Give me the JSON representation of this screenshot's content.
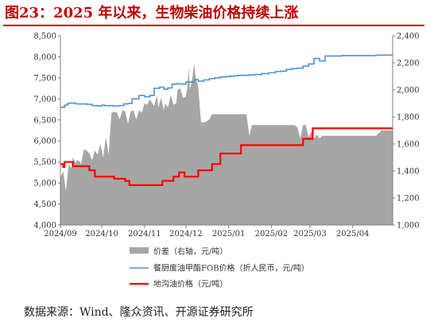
{
  "header": {
    "title": "图23：2025 年以来，生物柴油价格持续上涨"
  },
  "footer": {
    "source": "数据来源：Wind、隆众资讯、开源证券研究所"
  },
  "colors": {
    "spread": "#a6a6a6",
    "fob": "#4f94d4",
    "ditch": "#ff0000",
    "title": "#c00000"
  },
  "chart_data": {
    "type": "line",
    "title": "",
    "x_type": "date",
    "x_range": [
      "2024-09-01",
      "2025-04-30"
    ],
    "x_ticks": [
      "2024/09",
      "2024/10",
      "2024/11",
      "2024/12",
      "2025/01",
      "2025/02",
      "2025/03",
      "2025/04"
    ],
    "y_left": {
      "min": 4000,
      "max": 8500,
      "step": 500,
      "ticks": [
        "4,000",
        "4,500",
        "5,000",
        "5,500",
        "6,000",
        "6,500",
        "7,000",
        "7,500",
        "8,000",
        "8,500"
      ]
    },
    "y_right": {
      "min": 1000,
      "max": 2400,
      "step": 200,
      "ticks": [
        "1,000",
        "1,200",
        "1,400",
        "1,600",
        "1,800",
        "2,000",
        "2,200",
        "2,400"
      ]
    },
    "series": [
      {
        "name": "价差（右轴，元/吨）",
        "type": "area",
        "axis": "right",
        "x": [
          "2024-09-01",
          "2024-09-03",
          "2024-09-05",
          "2024-09-07",
          "2024-09-09",
          "2024-09-10",
          "2024-09-12",
          "2024-09-13",
          "2024-09-15",
          "2024-09-16",
          "2024-09-18",
          "2024-09-20",
          "2024-09-22",
          "2024-09-24",
          "2024-09-26",
          "2024-09-28",
          "2024-09-30",
          "2024-10-02",
          "2024-10-04",
          "2024-10-06",
          "2024-10-08",
          "2024-10-10",
          "2024-10-12",
          "2024-10-14",
          "2024-10-16",
          "2024-10-18",
          "2024-10-20",
          "2024-10-22",
          "2024-10-24",
          "2024-10-26",
          "2024-10-28",
          "2024-10-30",
          "2024-11-01",
          "2024-11-03",
          "2024-11-05",
          "2024-11-06",
          "2024-11-08",
          "2024-11-10",
          "2024-11-11",
          "2024-11-13",
          "2024-11-15",
          "2024-11-16",
          "2024-11-18",
          "2024-11-20",
          "2024-11-22",
          "2024-11-24",
          "2024-11-25",
          "2024-11-27",
          "2024-11-29",
          "2024-12-01",
          "2024-12-02",
          "2024-12-03",
          "2024-12-04",
          "2024-12-05",
          "2024-12-06",
          "2024-12-07",
          "2024-12-08",
          "2024-12-10",
          "2024-12-12",
          "2024-12-15",
          "2024-12-18",
          "2024-12-20",
          "2024-12-22",
          "2024-12-25",
          "2024-12-28",
          "2024-12-31",
          "2025-01-03",
          "2025-01-06",
          "2025-01-08",
          "2025-01-10",
          "2025-01-12",
          "2025-01-14",
          "2025-01-16",
          "2025-01-18",
          "2025-01-20",
          "2025-01-23",
          "2025-01-26",
          "2025-01-29",
          "2025-02-01",
          "2025-02-04",
          "2025-02-07",
          "2025-02-10",
          "2025-02-14",
          "2025-02-18",
          "2025-02-20",
          "2025-02-22",
          "2025-02-24",
          "2025-02-26",
          "2025-02-28",
          "2025-03-02",
          "2025-03-04",
          "2025-03-06",
          "2025-03-08",
          "2025-03-10",
          "2025-03-12",
          "2025-03-15",
          "2025-03-18",
          "2025-03-21",
          "2025-03-24",
          "2025-03-27",
          "2025-03-30",
          "2025-04-02",
          "2025-04-06",
          "2025-04-10",
          "2025-04-14",
          "2025-04-18",
          "2025-04-22",
          "2025-04-26",
          "2025-04-30"
        ],
        "values": [
          1350,
          1400,
          1250,
          1450,
          1420,
          1500,
          1460,
          1480,
          1470,
          1450,
          1560,
          1550,
          1530,
          1480,
          1550,
          1520,
          1600,
          1500,
          1650,
          1520,
          1830,
          1840,
          1830,
          1780,
          1850,
          1840,
          1750,
          1840,
          1850,
          1780,
          1850,
          1830,
          1900,
          1890,
          1930,
          1910,
          1880,
          1960,
          1870,
          1940,
          1850,
          1900,
          1870,
          1960,
          1890,
          1900,
          2000,
          2010,
          1940,
          1950,
          2010,
          2160,
          2000,
          2050,
          2110,
          2200,
          2100,
          2020,
          1760,
          1760,
          1780,
          1820,
          1820,
          1820,
          1820,
          1820,
          1820,
          1820,
          1820,
          1820,
          1820,
          1820,
          1660,
          1740,
          1740,
          1740,
          1740,
          1740,
          1740,
          1740,
          1740,
          1740,
          1740,
          1740,
          1720,
          1640,
          1740,
          1740,
          1650,
          1690,
          1640,
          1670,
          1640,
          1660,
          1660,
          1660,
          1660,
          1660,
          1660,
          1660,
          1660,
          1660,
          1660,
          1660,
          1660,
          1660,
          1700,
          1700,
          1700
        ]
      },
      {
        "name": "餐厨废油甲酯FOB价格（折人民币，元/吨）",
        "type": "line",
        "axis": "left",
        "x": [
          "2024-09-01",
          "2024-09-03",
          "2024-09-04",
          "2024-09-06",
          "2024-09-07",
          "2024-09-09",
          "2024-09-12",
          "2024-09-16",
          "2024-09-20",
          "2024-09-24",
          "2024-09-28",
          "2024-10-01",
          "2024-10-03",
          "2024-10-06",
          "2024-10-09",
          "2024-10-13",
          "2024-10-17",
          "2024-10-20",
          "2024-10-23",
          "2024-10-26",
          "2024-10-28",
          "2024-11-01",
          "2024-11-05",
          "2024-11-08",
          "2024-11-12",
          "2024-11-15",
          "2024-11-18",
          "2024-11-21",
          "2024-11-24",
          "2024-11-28",
          "2024-12-01",
          "2024-12-04",
          "2024-12-07",
          "2024-12-10",
          "2024-12-14",
          "2024-12-18",
          "2024-12-22",
          "2024-12-26",
          "2024-12-30",
          "2025-01-02",
          "2025-01-05",
          "2025-01-08",
          "2025-01-12",
          "2025-01-16",
          "2025-01-20",
          "2025-01-25",
          "2025-01-30",
          "2025-02-04",
          "2025-02-08",
          "2025-02-12",
          "2025-02-16",
          "2025-02-20",
          "2025-02-24",
          "2025-02-28",
          "2025-03-04",
          "2025-03-08",
          "2025-03-12",
          "2025-03-16",
          "2025-03-20",
          "2025-03-24",
          "2025-03-28",
          "2025-04-02",
          "2025-04-06",
          "2025-04-10",
          "2025-04-14",
          "2025-04-18",
          "2025-04-22",
          "2025-04-26",
          "2025-04-30"
        ],
        "values": [
          6800,
          6800,
          6850,
          6880,
          6900,
          6900,
          6880,
          6880,
          6870,
          6840,
          6830,
          6850,
          6840,
          6840,
          6830,
          6840,
          6880,
          6890,
          7000,
          7000,
          7080,
          7050,
          7080,
          7250,
          7280,
          7230,
          7260,
          7350,
          7360,
          7350,
          7400,
          7400,
          7460,
          7420,
          7450,
          7480,
          7500,
          7520,
          7530,
          7540,
          7550,
          7560,
          7560,
          7570,
          7580,
          7600,
          7620,
          7650,
          7660,
          7700,
          7720,
          7730,
          7780,
          7830,
          7960,
          7900,
          8020,
          8020,
          8020,
          8030,
          8030,
          8030,
          8030,
          8030,
          8030,
          8040,
          8040,
          8040,
          8040
        ]
      },
      {
        "name": "地沟油价格（元/吨）",
        "type": "line",
        "axis": "left",
        "x": [
          "2024-09-01",
          "2024-09-03",
          "2024-09-04",
          "2024-09-06",
          "2024-09-08",
          "2024-09-10",
          "2024-09-14",
          "2024-09-18",
          "2024-09-22",
          "2024-09-26",
          "2024-09-30",
          "2024-10-03",
          "2024-10-06",
          "2024-10-10",
          "2024-10-14",
          "2024-10-18",
          "2024-10-21",
          "2024-10-24",
          "2024-10-28",
          "2024-11-01",
          "2024-11-04",
          "2024-11-08",
          "2024-11-11",
          "2024-11-14",
          "2024-11-18",
          "2024-11-22",
          "2024-11-26",
          "2024-11-30",
          "2024-12-03",
          "2024-12-06",
          "2024-12-10",
          "2024-12-15",
          "2024-12-20",
          "2024-12-26",
          "2025-01-02",
          "2025-01-08",
          "2025-01-10",
          "2025-01-14",
          "2025-01-18",
          "2025-01-24",
          "2025-01-30",
          "2025-02-06",
          "2025-02-12",
          "2025-02-18",
          "2025-02-22",
          "2025-02-24",
          "2025-02-26",
          "2025-03-01",
          "2025-03-03",
          "2025-03-06",
          "2025-03-10",
          "2025-03-15",
          "2025-03-20",
          "2025-03-25",
          "2025-03-30",
          "2025-04-05",
          "2025-04-10",
          "2025-04-15",
          "2025-04-20",
          "2025-04-25",
          "2025-04-30"
        ],
        "values": [
          5450,
          5380,
          5500,
          5500,
          5500,
          5400,
          5400,
          5400,
          5300,
          5150,
          5150,
          5150,
          5150,
          5100,
          5100,
          5050,
          4950,
          4950,
          4950,
          4950,
          4950,
          4950,
          4950,
          5050,
          5050,
          5150,
          5250,
          5150,
          5150,
          5150,
          5300,
          5300,
          5450,
          5700,
          5700,
          5700,
          5900,
          5900,
          5900,
          5900,
          5900,
          5900,
          5900,
          5900,
          5900,
          6050,
          6050,
          6050,
          6300,
          6300,
          6300,
          6300,
          6300,
          6300,
          6300,
          6300,
          6300,
          6300,
          6300,
          6300,
          6300
        ]
      }
    ]
  }
}
